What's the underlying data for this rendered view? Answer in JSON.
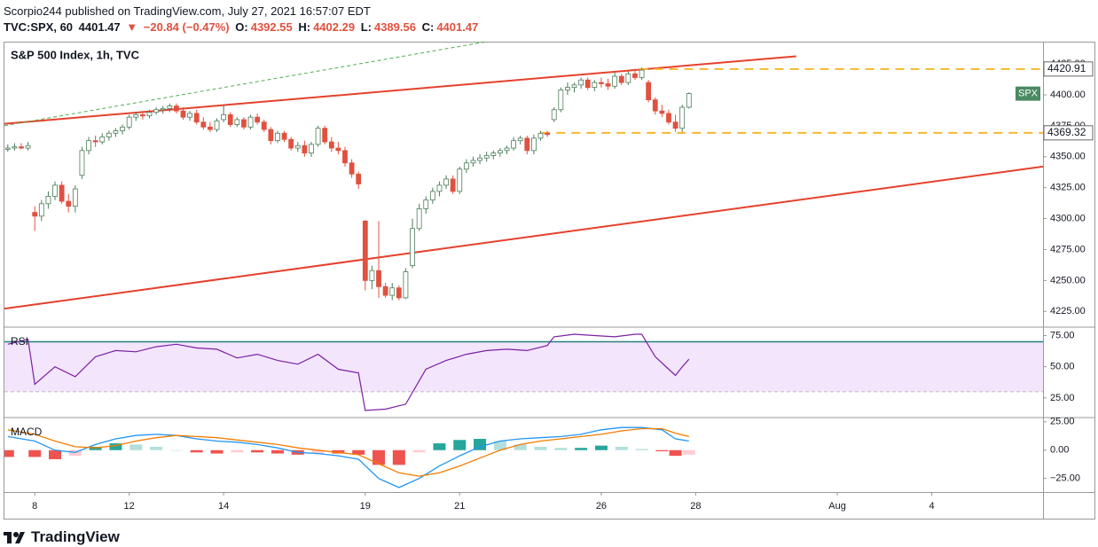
{
  "header": {
    "byline": "Scorpio244 published on TradingView.com, July 27, 2021 16:57:07 EDT",
    "symbol": "TVC:SPX, 60",
    "last": "4401.47",
    "arrow": "▼",
    "change": "−20.84 (−0.47%)",
    "quote": [
      {
        "label": "O:",
        "value": "4392.55"
      },
      {
        "label": "H:",
        "value": "4402.29"
      },
      {
        "label": "L:",
        "value": "4389.56"
      },
      {
        "label": "C:",
        "value": "4401.47"
      }
    ]
  },
  "footer": {
    "brand": "TradingView"
  },
  "chart_data": [
    {
      "type": "candlestick",
      "title": "S&P 500 Index, 1h, TVC",
      "symbol": "SPX",
      "up_color": "#ffffff",
      "up_stroke": "#4c7d5a",
      "down_color": "#e0513f",
      "xlim": [
        -4.5,
        149.5
      ],
      "ylim": [
        4213,
        4443
      ],
      "xticks": [
        {
          "value": 0,
          "label": "8"
        },
        {
          "value": 14,
          "label": "12"
        },
        {
          "value": 28,
          "label": "14"
        },
        {
          "value": 49,
          "label": "19"
        },
        {
          "value": 63,
          "label": "21"
        },
        {
          "value": 84,
          "label": "26"
        },
        {
          "value": 98,
          "label": "28"
        },
        {
          "value": 119,
          "label": "Aug"
        },
        {
          "value": 133,
          "label": "4"
        }
      ],
      "yticks": [
        {
          "value": 4225,
          "label": "4225.00"
        },
        {
          "value": 4250,
          "label": "4250.00"
        },
        {
          "value": 4275,
          "label": "4275.00"
        },
        {
          "value": 4300,
          "label": "4300.00"
        },
        {
          "value": 4325,
          "label": "4325.00"
        },
        {
          "value": 4350,
          "label": "4350.00"
        },
        {
          "value": 4375,
          "label": "4375.00"
        },
        {
          "value": 4400,
          "label": "4400.00"
        },
        {
          "value": 4425,
          "label": "4425.00"
        }
      ],
      "trendlines": [
        {
          "x": [
            -4.5,
            112.9
          ],
          "y": [
            4376.6,
            4431.2
          ],
          "color": "#e5412d",
          "dashed": false
        },
        {
          "x": [
            -4.5,
            149.5
          ],
          "y": [
            4227.2,
            4342.1
          ],
          "color": "#e5412d",
          "dashed": false
        },
        {
          "x": [
            -4.5,
            68.9
          ],
          "y": [
            4375.1,
            4444.8
          ],
          "color": "#4caf50",
          "dashed": true
        }
      ],
      "levels": [
        {
          "value": 4420.91,
          "start": 89.6,
          "color": "#f5b82e"
        },
        {
          "value": 4369.32,
          "start": 75.1,
          "color": "#f5b82e"
        }
      ],
      "x": [
        -4,
        -3,
        -2,
        -1,
        0,
        1,
        2,
        3,
        4,
        5,
        6,
        7,
        8,
        9,
        10,
        11,
        12,
        13,
        14,
        15,
        16,
        17,
        18,
        19,
        20,
        21,
        22,
        23,
        24,
        25,
        26,
        27,
        28,
        29,
        30,
        31,
        32,
        33,
        34,
        35,
        36,
        37,
        38,
        39,
        40,
        41,
        42,
        43,
        44,
        45,
        46,
        47,
        48,
        49,
        50,
        51,
        52,
        53,
        54,
        55,
        56,
        57,
        58,
        59,
        60,
        61,
        62,
        63,
        64,
        65,
        66,
        67,
        68,
        69,
        70,
        71,
        72,
        73,
        74,
        75,
        76,
        77,
        78,
        79,
        80,
        81,
        82,
        83,
        84,
        85,
        86,
        87,
        88,
        89,
        90,
        91,
        92,
        93,
        94,
        95,
        96,
        97
      ],
      "ohlc": [
        [
          4356,
          4360,
          4354,
          4357
        ],
        [
          4357,
          4361,
          4355,
          4358
        ],
        [
          4358,
          4361,
          4356,
          4357
        ],
        [
          4357,
          4362,
          4355,
          4359
        ],
        [
          4305,
          4310,
          4290,
          4302
        ],
        [
          4302,
          4315,
          4298,
          4312
        ],
        [
          4312,
          4322,
          4308,
          4318
        ],
        [
          4318,
          4330,
          4315,
          4327
        ],
        [
          4327,
          4330,
          4312,
          4314
        ],
        [
          4314,
          4320,
          4305,
          4310
        ],
        [
          4310,
          4327,
          4305,
          4324
        ],
        [
          4335,
          4358,
          4332,
          4355
        ],
        [
          4355,
          4366,
          4352,
          4363
        ],
        [
          4363,
          4367,
          4358,
          4362
        ],
        [
          4362,
          4369,
          4360,
          4366
        ],
        [
          4366,
          4371,
          4363,
          4369
        ],
        [
          4369,
          4373,
          4366,
          4371
        ],
        [
          4371,
          4376,
          4368,
          4374
        ],
        [
          4374,
          4384,
          4372,
          4382
        ],
        [
          4382,
          4386,
          4379,
          4384
        ],
        [
          4384,
          4387,
          4380,
          4383
        ],
        [
          4383,
          4388,
          4381,
          4386
        ],
        [
          4386,
          4390,
          4384,
          4388
        ],
        [
          4388,
          4391,
          4385,
          4389
        ],
        [
          4389,
          4393,
          4386,
          4391
        ],
        [
          4391,
          4393,
          4385,
          4387
        ],
        [
          4387,
          4390,
          4380,
          4382
        ],
        [
          4382,
          4387,
          4379,
          4385
        ],
        [
          4385,
          4388,
          4376,
          4378
        ],
        [
          4378,
          4382,
          4372,
          4374
        ],
        [
          4374,
          4378,
          4370,
          4372
        ],
        [
          4372,
          4381,
          4370,
          4379
        ],
        [
          4380,
          4392,
          4378,
          4384
        ],
        [
          4384,
          4386,
          4374,
          4376
        ],
        [
          4376,
          4382,
          4374,
          4380
        ],
        [
          4380,
          4382,
          4372,
          4374
        ],
        [
          4374,
          4384,
          4372,
          4382
        ],
        [
          4382,
          4385,
          4376,
          4378
        ],
        [
          4378,
          4380,
          4370,
          4372
        ],
        [
          4372,
          4374,
          4360,
          4363
        ],
        [
          4363,
          4371,
          4361,
          4369
        ],
        [
          4369,
          4371,
          4362,
          4364
        ],
        [
          4364,
          4366,
          4355,
          4357
        ],
        [
          4357,
          4362,
          4354,
          4359
        ],
        [
          4359,
          4363,
          4350,
          4353
        ],
        [
          4353,
          4362,
          4350,
          4360
        ],
        [
          4360,
          4375,
          4358,
          4373
        ],
        [
          4373,
          4375,
          4360,
          4362
        ],
        [
          4362,
          4366,
          4354,
          4357
        ],
        [
          4357,
          4362,
          4352,
          4355
        ],
        [
          4355,
          4358,
          4342,
          4345
        ],
        [
          4345,
          4348,
          4333,
          4336
        ],
        [
          4336,
          4338,
          4324,
          4328
        ],
        [
          4298,
          4299,
          4242,
          4250
        ],
        [
          4250,
          4262,
          4243,
          4258
        ],
        [
          4258,
          4298,
          4236,
          4245
        ],
        [
          4245,
          4248,
          4236,
          4238
        ],
        [
          4238,
          4248,
          4234,
          4244
        ],
        [
          4244,
          4246,
          4234,
          4236
        ],
        [
          4236,
          4260,
          4235,
          4257
        ],
        [
          4262,
          4300,
          4260,
          4292
        ],
        [
          4292,
          4312,
          4290,
          4308
        ],
        [
          4308,
          4318,
          4304,
          4315
        ],
        [
          4315,
          4325,
          4312,
          4322
        ],
        [
          4322,
          4330,
          4318,
          4327
        ],
        [
          4327,
          4335,
          4324,
          4332
        ],
        [
          4332,
          4335,
          4320,
          4322
        ],
        [
          4322,
          4342,
          4320,
          4340
        ],
        [
          4340,
          4348,
          4337,
          4345
        ],
        [
          4345,
          4350,
          4342,
          4347
        ],
        [
          4347,
          4352,
          4344,
          4349
        ],
        [
          4349,
          4354,
          4346,
          4351
        ],
        [
          4351,
          4355,
          4348,
          4353
        ],
        [
          4353,
          4357,
          4350,
          4355
        ],
        [
          4355,
          4359,
          4352,
          4357
        ],
        [
          4357,
          4366,
          4355,
          4363
        ],
        [
          4363,
          4367,
          4360,
          4365
        ],
        [
          4365,
          4367,
          4352,
          4355
        ],
        [
          4355,
          4368,
          4352,
          4365
        ],
        [
          4365,
          4371,
          4363,
          4369
        ],
        [
          4369,
          4371,
          4366,
          4368
        ],
        [
          4380,
          4390,
          4378,
          4388
        ],
        [
          4388,
          4406,
          4386,
          4404
        ],
        [
          4404,
          4410,
          4400,
          4406
        ],
        [
          4406,
          4410,
          4402,
          4408
        ],
        [
          4408,
          4414,
          4405,
          4412
        ],
        [
          4412,
          4414,
          4404,
          4406
        ],
        [
          4406,
          4412,
          4403,
          4410
        ],
        [
          4410,
          4414,
          4406,
          4409
        ],
        [
          4409,
          4413,
          4404,
          4407
        ],
        [
          4407,
          4418,
          4405,
          4415
        ],
        [
          4415,
          4417,
          4408,
          4410
        ],
        [
          4410,
          4419,
          4408,
          4417
        ],
        [
          4417,
          4421,
          4412,
          4414
        ],
        [
          4414,
          4422,
          4412,
          4420
        ],
        [
          4410,
          4412,
          4394,
          4396
        ],
        [
          4396,
          4398,
          4384,
          4387
        ],
        [
          4387,
          4392,
          4382,
          4385
        ],
        [
          4385,
          4388,
          4376,
          4378
        ],
        [
          4378,
          4384,
          4370,
          4373
        ],
        [
          4373,
          4392,
          4370,
          4390
        ],
        [
          4390,
          4402,
          4389,
          4401
        ]
      ]
    },
    {
      "type": "line",
      "title": "RSI",
      "color": "#7b1fa2",
      "band": [
        30,
        70
      ],
      "band_color": "#f3e5fc",
      "band_line_color": "#26807a",
      "ylim": [
        10,
        81
      ],
      "yticks": [
        {
          "value": 25,
          "label": "25.00"
        },
        {
          "value": 50,
          "label": "50.00"
        },
        {
          "value": 75,
          "label": "75.00"
        }
      ],
      "x": [
        -4,
        -1,
        0,
        3,
        6,
        9,
        12,
        15,
        18,
        21,
        24,
        27,
        30,
        33,
        36,
        39,
        42,
        45,
        48,
        49,
        52,
        55,
        58,
        61,
        64,
        67,
        70,
        73,
        76,
        77,
        80,
        83,
        86,
        89,
        90,
        92,
        94,
        95,
        96,
        97
      ],
      "values": [
        68,
        72,
        36,
        50,
        42,
        58,
        63,
        62,
        66,
        68,
        65,
        64,
        57,
        60,
        55,
        52,
        60,
        48,
        45,
        15,
        16,
        20,
        48,
        55,
        60,
        63,
        64,
        63,
        67,
        74,
        76,
        75,
        74,
        76,
        76,
        58,
        48,
        43,
        50,
        56
      ]
    },
    {
      "type": "macd",
      "title": "MACD",
      "ylim": [
        -37,
        28
      ],
      "yticks": [
        {
          "value": -25,
          "label": "−25.00"
        },
        {
          "value": 0,
          "label": "0.00"
        },
        {
          "value": 25,
          "label": "25.00"
        }
      ],
      "x": [
        -4,
        0,
        3,
        6,
        9,
        12,
        15,
        18,
        21,
        24,
        27,
        30,
        33,
        36,
        39,
        42,
        45,
        48,
        51,
        54,
        57,
        60,
        63,
        66,
        69,
        72,
        75,
        78,
        81,
        84,
        87,
        90,
        93,
        95,
        97
      ],
      "macd": {
        "color": "#2196f3",
        "values": [
          12,
          8,
          0,
          -2,
          5,
          10,
          13,
          14,
          13,
          10,
          8,
          7,
          5,
          2,
          -2,
          -3,
          -5,
          -8,
          -25,
          -33,
          -25,
          -14,
          -5,
          3,
          8,
          10,
          11,
          12,
          14,
          18,
          20,
          20,
          18,
          10,
          8
        ]
      },
      "signal": {
        "color": "#f57c00",
        "values": [
          18,
          14,
          8,
          3,
          2,
          4,
          8,
          11,
          13,
          12,
          11,
          9,
          7,
          5,
          2,
          0,
          -2,
          -4,
          -12,
          -20,
          -23,
          -20,
          -14,
          -7,
          0,
          5,
          8,
          10,
          12,
          14,
          17,
          19,
          19,
          15,
          12
        ]
      },
      "histogram": [
        -6,
        -6,
        -8,
        -5,
        3,
        6,
        5,
        3,
        0,
        -2,
        -3,
        -2,
        -2,
        -3,
        -4,
        -3,
        -3,
        -4,
        -13,
        -13,
        -2,
        6,
        9,
        10,
        8,
        5,
        3,
        2,
        2,
        4,
        3,
        1,
        -1,
        -5,
        -4
      ],
      "histogram_colors": [
        "#26a69a",
        "#b2dfdb",
        "#ef5350",
        "#ffcdd2"
      ]
    }
  ]
}
